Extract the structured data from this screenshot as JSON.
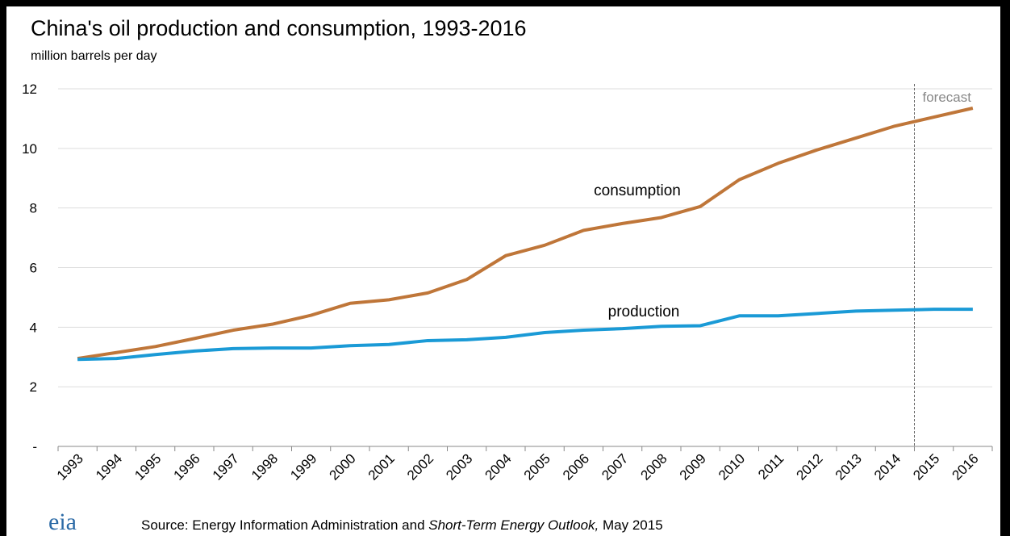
{
  "chart_data": {
    "type": "line",
    "title": "China's oil production and consumption, 1993-2016",
    "subtitle": "million barrels per day",
    "categories": [
      "1993",
      "1994",
      "1995",
      "1996",
      "1997",
      "1998",
      "1999",
      "2000",
      "2001",
      "2002",
      "2003",
      "2004",
      "2005",
      "2006",
      "2007",
      "2008",
      "2009",
      "2010",
      "2011",
      "2012",
      "2013",
      "2014",
      "2015",
      "2016"
    ],
    "series": [
      {
        "name": "consumption",
        "color": "#bf7639",
        "values": [
          2.95,
          3.15,
          3.35,
          3.62,
          3.9,
          4.1,
          4.4,
          4.8,
          4.92,
          5.15,
          5.6,
          6.4,
          6.75,
          7.25,
          7.48,
          7.68,
          8.05,
          8.95,
          9.5,
          9.95,
          10.35,
          10.75,
          11.05,
          11.35
        ]
      },
      {
        "name": "production",
        "color": "#1a9ad6",
        "values": [
          2.92,
          2.95,
          3.08,
          3.2,
          3.28,
          3.3,
          3.3,
          3.38,
          3.42,
          3.55,
          3.58,
          3.66,
          3.82,
          3.9,
          3.95,
          4.03,
          4.05,
          4.38,
          4.38,
          4.46,
          4.54,
          4.57,
          4.6,
          4.6
        ]
      }
    ],
    "ylim": [
      0,
      12
    ],
    "yticks": [
      {
        "value": 0,
        "label": "-"
      },
      2,
      4,
      6,
      8,
      10,
      12
    ],
    "grid": true,
    "forecast_label": "forecast",
    "logo": "eia",
    "source": [
      "Source: Energy Information Administration and ",
      "Short-Term Energy Outlook,",
      " May 2015"
    ]
  }
}
